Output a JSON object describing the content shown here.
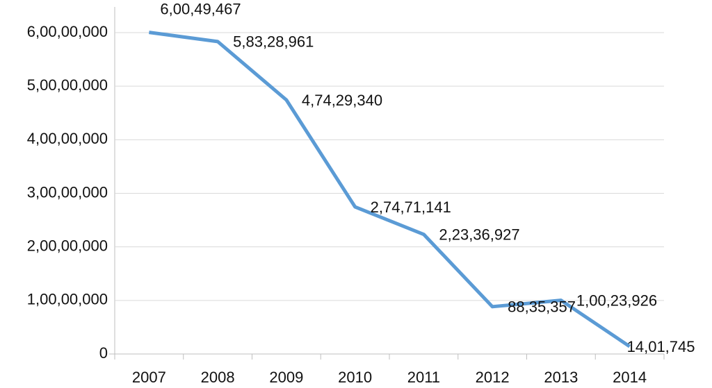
{
  "chart_data": {
    "type": "line",
    "categories": [
      "2007",
      "2008",
      "2009",
      "2010",
      "2011",
      "2012",
      "2013",
      "2014"
    ],
    "series": [
      {
        "color": "#5b9bd5",
        "values": [
          60049467,
          58328961,
          47429340,
          27471141,
          22336927,
          8835357,
          10023926,
          1401745
        ],
        "value_labels": [
          "6,00,49,467",
          "5,83,28,961",
          "4,74,29,340",
          "2,74,71,141",
          "2,23,36,927",
          "88,35,357",
          "1,00,23,926",
          "14,01,745"
        ]
      }
    ],
    "ylim": [
      0,
      60000000
    ],
    "yticks": [
      0,
      {
        "value": 10000000,
        "label": "1,00,00,000"
      },
      {
        "value": 20000000,
        "label": "2,00,00,000"
      },
      {
        "value": 30000000,
        "label": "3,00,00,000"
      },
      {
        "value": 40000000,
        "label": "4,00,00,000"
      },
      {
        "value": 50000000,
        "label": "5,00,00,000"
      },
      {
        "value": 60000000,
        "label": "6,00,00,000"
      }
    ],
    "grid": true
  }
}
